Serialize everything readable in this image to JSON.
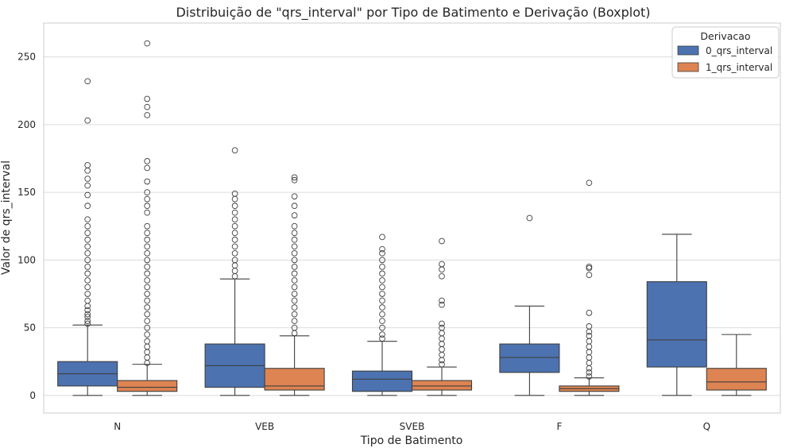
{
  "chart_data": {
    "type": "boxplot",
    "title": "Distribuição de \"qrs_interval\" por Tipo de Batimento e Derivação (Boxplot)",
    "xlabel": "Tipo de Batimento",
    "ylabel": "Valor de qrs_interval",
    "categories": [
      "N",
      "VEB",
      "SVEB",
      "F",
      "Q"
    ],
    "ylim": [
      -13,
      275
    ],
    "yticks": [
      0,
      50,
      100,
      150,
      200,
      250
    ],
    "grid": true,
    "legend": {
      "title": "Derivacao",
      "position": "top-right"
    },
    "series": [
      {
        "name": "0_qrs_interval",
        "color": "#4c72b0",
        "boxes": [
          {
            "whisker_low": 0,
            "q1": 7,
            "median": 16,
            "q3": 25,
            "whisker_high": 52,
            "outliers": [
              53,
              55,
              58,
              60,
              63,
              66,
              70,
              75,
              80,
              85,
              90,
              95,
              100,
              105,
              110,
              115,
              120,
              125,
              130,
              140,
              148,
              155,
              160,
              166,
              170,
              203,
              232
            ]
          },
          {
            "whisker_low": 0,
            "q1": 6,
            "median": 22,
            "q3": 38,
            "whisker_high": 86,
            "outliers": [
              88,
              92,
              96,
              100,
              105,
              110,
              115,
              120,
              125,
              130,
              135,
              140,
              145,
              149,
              181
            ]
          },
          {
            "whisker_low": 0,
            "q1": 3,
            "median": 12,
            "q3": 18,
            "whisker_high": 40,
            "outliers": [
              42,
              45,
              50,
              55,
              60,
              65,
              70,
              75,
              80,
              85,
              90,
              95,
              100,
              105,
              108,
              117
            ]
          },
          {
            "whisker_low": 0,
            "q1": 17,
            "median": 28,
            "q3": 38,
            "whisker_high": 66,
            "outliers": [
              131
            ]
          },
          {
            "whisker_low": 0,
            "q1": 21,
            "median": 41,
            "q3": 84,
            "whisker_high": 119,
            "outliers": []
          }
        ]
      },
      {
        "name": "1_qrs_interval",
        "color": "#dd8452",
        "boxes": [
          {
            "whisker_low": 0,
            "q1": 3,
            "median": 6,
            "q3": 11,
            "whisker_high": 23,
            "outliers": [
              24,
              28,
              32,
              36,
              40,
              45,
              50,
              55,
              60,
              65,
              70,
              75,
              80,
              85,
              90,
              95,
              100,
              105,
              110,
              115,
              120,
              125,
              135,
              140,
              145,
              150,
              158,
              168,
              173,
              207,
              213,
              219,
              260
            ]
          },
          {
            "whisker_low": 0,
            "q1": 4,
            "median": 7,
            "q3": 20,
            "whisker_high": 44,
            "outliers": [
              46,
              50,
              55,
              60,
              65,
              70,
              75,
              80,
              85,
              90,
              95,
              100,
              105,
              110,
              115,
              120,
              125,
              133,
              140,
              147,
              159,
              161
            ]
          },
          {
            "whisker_low": 0,
            "q1": 4,
            "median": 7,
            "q3": 11,
            "whisker_high": 21,
            "outliers": [
              23,
              26,
              30,
              34,
              38,
              42,
              46,
              50,
              53,
              67,
              70,
              88,
              93,
              97,
              114
            ]
          },
          {
            "whisker_low": 0,
            "q1": 3,
            "median": 5,
            "q3": 7,
            "whisker_high": 13,
            "outliers": [
              14,
              17,
              20,
              24,
              28,
              32,
              36,
              40,
              44,
              47,
              51,
              61,
              89,
              94,
              95,
              157
            ]
          },
          {
            "whisker_low": 0,
            "q1": 4,
            "median": 10,
            "q3": 20,
            "whisker_high": 45,
            "outliers": []
          }
        ]
      }
    ]
  }
}
